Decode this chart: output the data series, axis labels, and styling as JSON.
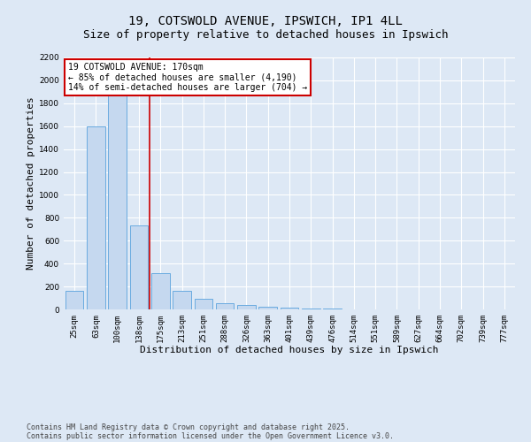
{
  "title_line1": "19, COTSWOLD AVENUE, IPSWICH, IP1 4LL",
  "title_line2": "Size of property relative to detached houses in Ipswich",
  "xlabel": "Distribution of detached houses by size in Ipswich",
  "ylabel": "Number of detached properties",
  "categories": [
    "25sqm",
    "63sqm",
    "100sqm",
    "138sqm",
    "175sqm",
    "213sqm",
    "251sqm",
    "288sqm",
    "326sqm",
    "363sqm",
    "401sqm",
    "439sqm",
    "476sqm",
    "514sqm",
    "551sqm",
    "589sqm",
    "627sqm",
    "664sqm",
    "702sqm",
    "739sqm",
    "777sqm"
  ],
  "values": [
    160,
    1600,
    2000,
    730,
    320,
    160,
    90,
    55,
    40,
    25,
    12,
    7,
    5,
    3,
    2,
    1,
    1,
    1,
    0,
    0,
    0
  ],
  "bar_color": "#c5d8ef",
  "bar_edge_color": "#6aabe0",
  "vline_x_index": 3.5,
  "vline_color": "#cc0000",
  "annotation_text": "19 COTSWOLD AVENUE: 170sqm\n← 85% of detached houses are smaller (4,190)\n14% of semi-detached houses are larger (704) →",
  "annotation_box_color": "#ffffff",
  "annotation_box_edge": "#cc0000",
  "ylim": [
    0,
    2200
  ],
  "yticks": [
    0,
    200,
    400,
    600,
    800,
    1000,
    1200,
    1400,
    1600,
    1800,
    2000,
    2200
  ],
  "bg_color": "#dde8f5",
  "plot_bg_color": "#dde8f5",
  "grid_color": "#ffffff",
  "footer_line1": "Contains HM Land Registry data © Crown copyright and database right 2025.",
  "footer_line2": "Contains public sector information licensed under the Open Government Licence v3.0.",
  "title_fontsize": 10,
  "subtitle_fontsize": 9,
  "tick_fontsize": 6.5,
  "axis_label_fontsize": 8,
  "annotation_fontsize": 7,
  "footer_fontsize": 6
}
